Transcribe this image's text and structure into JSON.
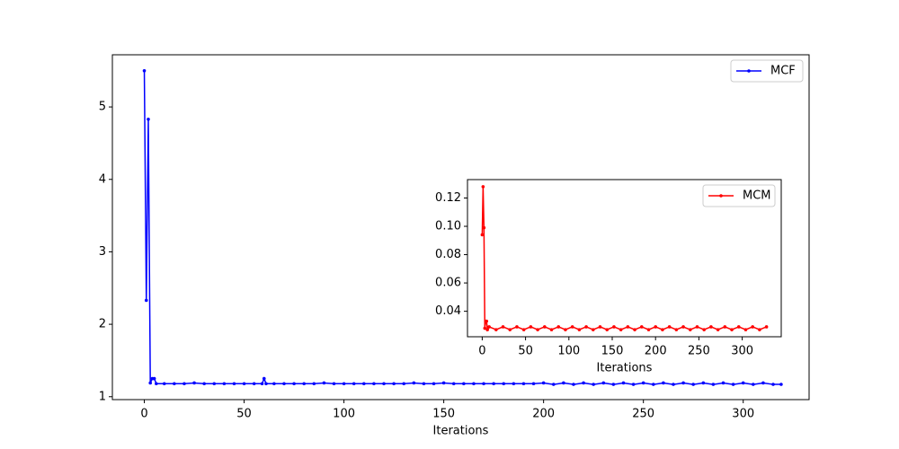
{
  "chart_data": [
    {
      "type": "line",
      "xlabel": "Iterations",
      "legend": "upper right",
      "xlim": [
        -16,
        333
      ],
      "ylim": [
        0.96,
        5.72
      ],
      "xticks": [
        0,
        50,
        100,
        150,
        200,
        250,
        300
      ],
      "yticks": [
        1,
        2,
        3,
        4,
        5
      ],
      "x": [
        0,
        1,
        2,
        3,
        4,
        5,
        6,
        10,
        15,
        20,
        25,
        30,
        35,
        40,
        45,
        50,
        55,
        59,
        60,
        61,
        65,
        70,
        75,
        80,
        85,
        90,
        95,
        100,
        105,
        110,
        115,
        120,
        125,
        130,
        135,
        140,
        145,
        150,
        155,
        160,
        165,
        170,
        175,
        180,
        185,
        190,
        195,
        200,
        205,
        210,
        215,
        220,
        225,
        230,
        235,
        240,
        245,
        250,
        255,
        260,
        265,
        270,
        275,
        280,
        285,
        290,
        295,
        300,
        305,
        310,
        315,
        319
      ],
      "series": [
        {
          "name": "MCF",
          "color": "#0000ff",
          "values": [
            5.5,
            2.33,
            4.83,
            1.19,
            1.25,
            1.25,
            1.18,
            1.18,
            1.18,
            1.18,
            1.19,
            1.18,
            1.18,
            1.18,
            1.18,
            1.18,
            1.18,
            1.18,
            1.25,
            1.18,
            1.18,
            1.18,
            1.18,
            1.18,
            1.18,
            1.19,
            1.18,
            1.18,
            1.18,
            1.18,
            1.18,
            1.18,
            1.18,
            1.18,
            1.19,
            1.18,
            1.18,
            1.19,
            1.18,
            1.18,
            1.18,
            1.18,
            1.18,
            1.18,
            1.18,
            1.18,
            1.18,
            1.19,
            1.17,
            1.19,
            1.17,
            1.19,
            1.17,
            1.19,
            1.17,
            1.19,
            1.17,
            1.19,
            1.17,
            1.19,
            1.17,
            1.19,
            1.17,
            1.19,
            1.17,
            1.19,
            1.17,
            1.19,
            1.17,
            1.19,
            1.17,
            1.17
          ]
        }
      ]
    },
    {
      "type": "line",
      "xlabel": "Iterations",
      "legend": "upper right",
      "xlim": [
        -17,
        345
      ],
      "ylim": [
        0.022,
        0.133
      ],
      "xticks": [
        0,
        50,
        100,
        150,
        200,
        250,
        300
      ],
      "yticks": [
        0.04,
        0.06,
        0.08,
        {
          "value": 0.1,
          "label": "0.10"
        },
        0.12
      ],
      "x": [
        0,
        1,
        2,
        3,
        4,
        5,
        6,
        8,
        16,
        24,
        32,
        40,
        48,
        56,
        64,
        72,
        80,
        88,
        96,
        104,
        112,
        120,
        128,
        136,
        144,
        152,
        160,
        168,
        176,
        184,
        192,
        200,
        208,
        216,
        224,
        232,
        240,
        248,
        256,
        264,
        272,
        280,
        288,
        296,
        304,
        312,
        320,
        328
      ],
      "series": [
        {
          "name": "MCM",
          "color": "#ff0000",
          "values": [
            0.094,
            0.128,
            0.099,
            0.028,
            0.033,
            0.033,
            0.027,
            0.029,
            0.027,
            0.029,
            0.027,
            0.029,
            0.027,
            0.029,
            0.027,
            0.029,
            0.027,
            0.029,
            0.027,
            0.029,
            0.027,
            0.029,
            0.027,
            0.029,
            0.027,
            0.029,
            0.027,
            0.029,
            0.027,
            0.029,
            0.027,
            0.029,
            0.027,
            0.029,
            0.027,
            0.029,
            0.027,
            0.029,
            0.027,
            0.029,
            0.027,
            0.029,
            0.027,
            0.029,
            0.027,
            0.029,
            0.027,
            0.029
          ]
        }
      ]
    }
  ]
}
